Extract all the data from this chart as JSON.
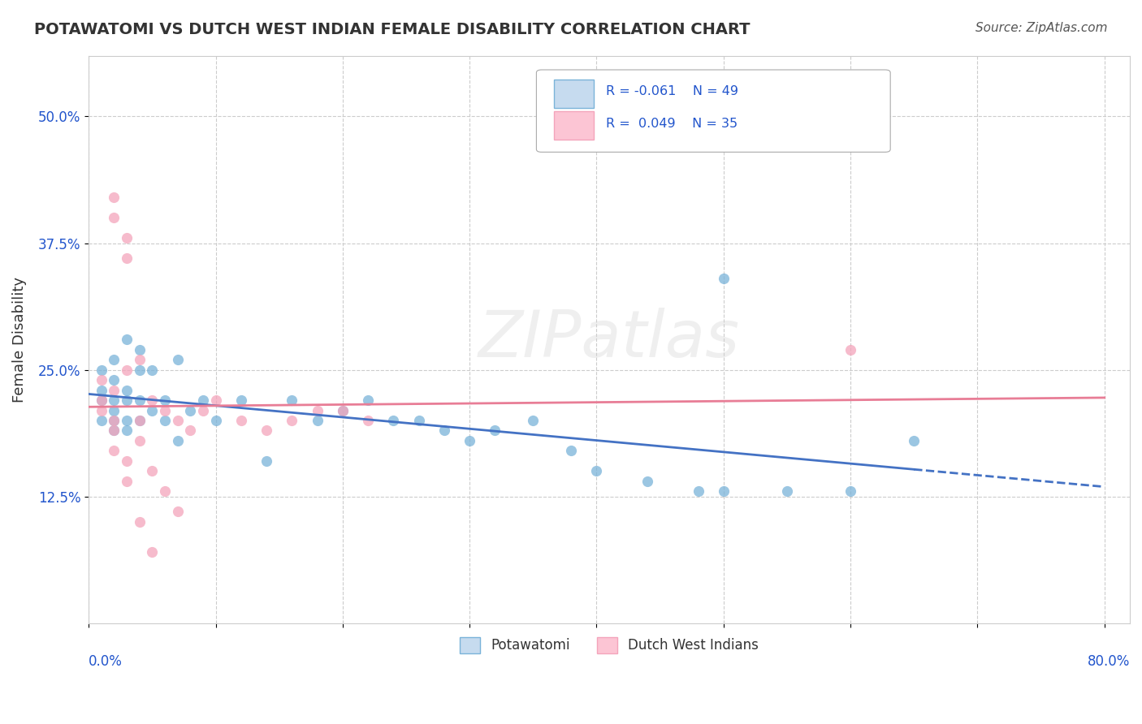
{
  "title": "POTAWATOMI VS DUTCH WEST INDIAN FEMALE DISABILITY CORRELATION CHART",
  "source": "Source: ZipAtlas.com",
  "ylabel": "Female Disability",
  "xlim": [
    0.0,
    0.82
  ],
  "ylim": [
    0.0,
    0.56
  ],
  "yticks": [
    0.125,
    0.25,
    0.375,
    0.5
  ],
  "ytick_labels": [
    "12.5%",
    "25.0%",
    "37.5%",
    "50.0%"
  ],
  "legend_r1": "R = -0.061",
  "legend_n1": "N = 49",
  "legend_r2": "R =  0.049",
  "legend_n2": "N = 35",
  "blue_scatter": "#7ab3d9",
  "pink_scatter": "#f4a4bb",
  "blue_legend_face": "#c6dbef",
  "pink_legend_face": "#fcc5d4",
  "blue_line": "#4472c4",
  "pink_line": "#e87d96",
  "background_color": "#ffffff",
  "grid_color": "#cccccc",
  "text_color": "#2255cc",
  "potawatomi_x": [
    0.01,
    0.01,
    0.01,
    0.01,
    0.02,
    0.02,
    0.02,
    0.02,
    0.02,
    0.02,
    0.03,
    0.03,
    0.03,
    0.03,
    0.03,
    0.04,
    0.04,
    0.04,
    0.04,
    0.05,
    0.05,
    0.06,
    0.06,
    0.07,
    0.07,
    0.08,
    0.09,
    0.1,
    0.12,
    0.14,
    0.16,
    0.18,
    0.2,
    0.22,
    0.24,
    0.26,
    0.28,
    0.3,
    0.32,
    0.35,
    0.38,
    0.4,
    0.44,
    0.48,
    0.5,
    0.55,
    0.6,
    0.5,
    0.65
  ],
  "potawatomi_y": [
    0.22,
    0.25,
    0.23,
    0.2,
    0.22,
    0.24,
    0.2,
    0.26,
    0.21,
    0.19,
    0.23,
    0.28,
    0.19,
    0.2,
    0.22,
    0.27,
    0.25,
    0.22,
    0.2,
    0.25,
    0.21,
    0.22,
    0.2,
    0.26,
    0.18,
    0.21,
    0.22,
    0.2,
    0.22,
    0.16,
    0.22,
    0.2,
    0.21,
    0.22,
    0.2,
    0.2,
    0.19,
    0.18,
    0.19,
    0.2,
    0.17,
    0.15,
    0.14,
    0.13,
    0.13,
    0.13,
    0.13,
    0.34,
    0.18
  ],
  "dutch_x": [
    0.01,
    0.01,
    0.01,
    0.02,
    0.02,
    0.02,
    0.02,
    0.02,
    0.03,
    0.03,
    0.03,
    0.03,
    0.04,
    0.04,
    0.04,
    0.05,
    0.05,
    0.06,
    0.07,
    0.08,
    0.09,
    0.1,
    0.12,
    0.14,
    0.16,
    0.18,
    0.2,
    0.22,
    0.02,
    0.03,
    0.04,
    0.05,
    0.6,
    0.06,
    0.07
  ],
  "dutch_y": [
    0.21,
    0.22,
    0.24,
    0.2,
    0.19,
    0.23,
    0.42,
    0.17,
    0.25,
    0.16,
    0.38,
    0.14,
    0.26,
    0.2,
    0.18,
    0.22,
    0.15,
    0.21,
    0.2,
    0.19,
    0.21,
    0.22,
    0.2,
    0.19,
    0.2,
    0.21,
    0.21,
    0.2,
    0.4,
    0.36,
    0.1,
    0.07,
    0.27,
    0.13,
    0.11
  ],
  "watermark": "ZIPatlas"
}
